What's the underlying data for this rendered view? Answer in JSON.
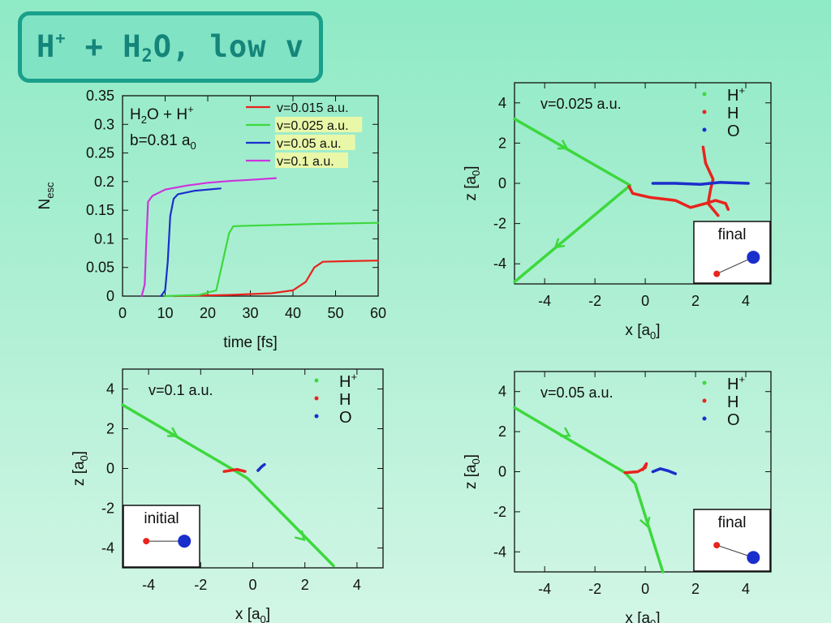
{
  "title": {
    "prefix": "H",
    "plus_sup": "+",
    "middle": " + H",
    "sub": "2",
    "suffix": "O, low v"
  },
  "chart_data": [
    {
      "type": "line",
      "id": "nesc",
      "xlabel": "time [fs]",
      "ylabel": "N",
      "ylabel_sub": "esc",
      "xlim": [
        0,
        60
      ],
      "ylim": [
        0,
        0.35
      ],
      "xticks": [
        "0",
        "10",
        "20",
        "30",
        "40",
        "50",
        "60"
      ],
      "yticks": [
        "0",
        "0.05",
        "0.1",
        "0.15",
        "0.2",
        "0.25",
        "0.3",
        "0.35"
      ],
      "annotation": {
        "line1_a": "H",
        "line1_sub": "2",
        "line1_b": "O + H",
        "line1_sup": "+",
        "line2_a": "b=0.81 a",
        "line2_sub": "0"
      },
      "series": [
        {
          "name": "v=0.015 a.u.",
          "color": "#e8241c",
          "points": [
            [
              12,
              0
            ],
            [
              25,
              0.002
            ],
            [
              35,
              0.005
            ],
            [
              40,
              0.01
            ],
            [
              43,
              0.025
            ],
            [
              45,
              0.05
            ],
            [
              47,
              0.06
            ],
            [
              52,
              0.061
            ],
            [
              60,
              0.062
            ]
          ]
        },
        {
          "name": "v=0.025 a.u.",
          "color": "#3dd83d",
          "points": [
            [
              10,
              0
            ],
            [
              18,
              0.002
            ],
            [
              22,
              0.01
            ],
            [
              23.5,
              0.06
            ],
            [
              25,
              0.11
            ],
            [
              26,
              0.122
            ],
            [
              30,
              0.123
            ],
            [
              45,
              0.126
            ],
            [
              60,
              0.128
            ]
          ]
        },
        {
          "name": "v=0.05 a.u.",
          "color": "#1a2ecc",
          "points": [
            [
              9,
              0
            ],
            [
              10,
              0.01
            ],
            [
              10.6,
              0.06
            ],
            [
              11.2,
              0.14
            ],
            [
              12,
              0.17
            ],
            [
              13,
              0.178
            ],
            [
              17,
              0.184
            ],
            [
              23,
              0.188
            ]
          ]
        },
        {
          "name": "v=0.1 a.u.",
          "color": "#cc33dd",
          "points": [
            [
              4.5,
              0
            ],
            [
              5.2,
              0.02
            ],
            [
              5.6,
              0.1
            ],
            [
              6,
              0.165
            ],
            [
              7,
              0.175
            ],
            [
              10,
              0.186
            ],
            [
              15,
              0.193
            ],
            [
              20,
              0.198
            ],
            [
              25,
              0.201
            ],
            [
              30,
              0.203
            ],
            [
              36,
              0.206
            ]
          ]
        }
      ]
    },
    {
      "type": "line",
      "id": "traj_tr",
      "label": "v=0.025 a.u.",
      "xlabel": "x [a",
      "xlabel_sub": "0",
      "ylabel": "z [a",
      "ylabel_sub": "0",
      "xlim": [
        -5.2,
        5
      ],
      "ylim": [
        -5,
        5
      ],
      "xticks": [
        "-4",
        "-2",
        "0",
        "2",
        "4"
      ],
      "yticks": [
        "-4",
        "-2",
        "0",
        "2",
        "4"
      ],
      "legend": [
        {
          "name": "H",
          "sup": "+",
          "color": "#3dd83d"
        },
        {
          "name": "H",
          "color": "#e8241c"
        },
        {
          "name": "O",
          "color": "#1a2ecc"
        }
      ],
      "inset": {
        "label": "final",
        "h_pos": [
          0.3,
          0.28
        ],
        "o_pos": [
          0.78,
          0.58
        ]
      },
      "series": [
        {
          "name": "H+ in",
          "color": "#3dd83d",
          "points": [
            [
              -5.2,
              3.2
            ],
            [
              -0.6,
              -0.1
            ]
          ],
          "arrow": [
            -3.2,
            1.8
          ]
        },
        {
          "name": "H+ out",
          "color": "#3dd83d",
          "points": [
            [
              -0.6,
              -0.1
            ],
            [
              -5.2,
              -4.9
            ]
          ],
          "arrow": [
            -3.5,
            -3.1
          ]
        },
        {
          "name": "H",
          "color": "#e8241c",
          "points": [
            [
              -0.65,
              -0.15
            ],
            [
              -0.5,
              -0.5
            ],
            [
              0.2,
              -0.7
            ],
            [
              1.2,
              -0.85
            ],
            [
              1.8,
              -1.2
            ],
            [
              2.4,
              -1.0
            ],
            [
              2.8,
              -0.85
            ],
            [
              3.2,
              -1.0
            ],
            [
              3.3,
              -1.3
            ]
          ]
        },
        {
          "name": "H2",
          "color": "#e8241c",
          "points": [
            [
              2.3,
              1.8
            ],
            [
              2.4,
              1.0
            ],
            [
              2.7,
              0.2
            ],
            [
              2.6,
              -0.3
            ],
            [
              2.5,
              -1.0
            ],
            [
              2.9,
              -1.6
            ]
          ]
        },
        {
          "name": "O",
          "color": "#1a2ecc",
          "points": [
            [
              0.3,
              0.0
            ],
            [
              1.2,
              0.0
            ],
            [
              2.2,
              -0.05
            ],
            [
              3.0,
              0.05
            ],
            [
              4.1,
              0.0
            ]
          ]
        }
      ]
    },
    {
      "type": "line",
      "id": "traj_bl",
      "label": "v=0.1 a.u.",
      "xlabel": "x [a",
      "xlabel_sub": "0",
      "ylabel": "z [a",
      "ylabel_sub": "0",
      "xlim": [
        -5,
        5
      ],
      "ylim": [
        -5,
        5
      ],
      "xticks": [
        "-4",
        "-2",
        "0",
        "2",
        "4"
      ],
      "yticks": [
        "-4",
        "-2",
        "0",
        "2",
        "4"
      ],
      "legend": [
        {
          "name": "H",
          "sup": "+",
          "color": "#3dd83d"
        },
        {
          "name": "H",
          "color": "#e8241c"
        },
        {
          "name": "O",
          "color": "#1a2ecc"
        }
      ],
      "inset": {
        "label": "initial",
        "h_pos": [
          0.3,
          0.58
        ],
        "o_pos": [
          0.8,
          0.58
        ]
      },
      "series": [
        {
          "name": "H+",
          "color": "#3dd83d",
          "points": [
            [
              -5,
              3.2
            ],
            [
              -0.9,
              0.05
            ],
            [
              -0.2,
              -0.5
            ],
            [
              3.1,
              -4.9
            ]
          ],
          "arrow": [
            -3.0,
            1.7
          ],
          "arrow2": [
            1.9,
            -3.5
          ]
        },
        {
          "name": "H",
          "color": "#e8241c",
          "points": [
            [
              -1.1,
              -0.15
            ],
            [
              -0.6,
              -0.05
            ],
            [
              -0.3,
              -0.15
            ]
          ]
        },
        {
          "name": "O",
          "color": "#1a2ecc",
          "points": [
            [
              0.2,
              -0.1
            ],
            [
              0.35,
              0.1
            ],
            [
              0.45,
              0.2
            ]
          ]
        }
      ]
    },
    {
      "type": "line",
      "id": "traj_br",
      "label": "v=0.05 a.u.",
      "xlabel": "x [a",
      "xlabel_sub": "0",
      "ylabel": "z [a",
      "ylabel_sub": "0",
      "xlim": [
        -5.2,
        5
      ],
      "ylim": [
        -5,
        5
      ],
      "xticks": [
        "-4",
        "-2",
        "0",
        "2",
        "4"
      ],
      "yticks": [
        "-4",
        "-2",
        "0",
        "2",
        "4"
      ],
      "legend": [
        {
          "name": "H",
          "sup": "+",
          "color": "#3dd83d"
        },
        {
          "name": "H",
          "color": "#e8241c"
        },
        {
          "name": "O",
          "color": "#1a2ecc"
        }
      ],
      "inset": {
        "label": "final",
        "h_pos": [
          0.3,
          0.58
        ],
        "o_pos": [
          0.78,
          0.78
        ]
      },
      "series": [
        {
          "name": "H+",
          "color": "#3dd83d",
          "points": [
            [
              -5.2,
              3.2
            ],
            [
              -0.8,
              -0.05
            ],
            [
              -0.4,
              -0.6
            ],
            [
              0.7,
              -5
            ]
          ],
          "arrow": [
            -3.1,
            1.85
          ],
          "arrow2": [
            0.05,
            -2.6
          ]
        },
        {
          "name": "H",
          "color": "#e8241c",
          "points": [
            [
              -0.8,
              -0.05
            ],
            [
              -0.3,
              0.0
            ],
            [
              0.0,
              0.2
            ],
            [
              0.05,
              0.4
            ],
            [
              -0.1,
              0.1
            ]
          ]
        },
        {
          "name": "O",
          "color": "#1a2ecc",
          "points": [
            [
              0.3,
              0.0
            ],
            [
              0.6,
              0.15
            ],
            [
              0.9,
              0.05
            ],
            [
              1.2,
              -0.1
            ]
          ]
        }
      ]
    }
  ]
}
